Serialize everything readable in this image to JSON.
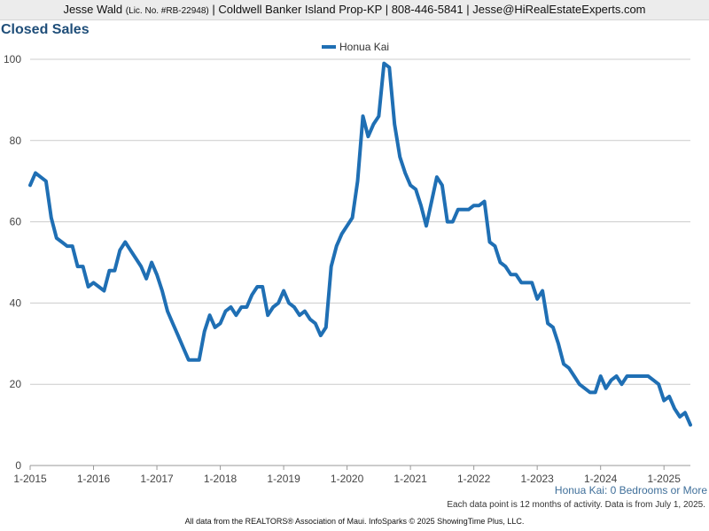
{
  "header": {
    "agent_name": "Jesse Wald",
    "license": "(Lic. No. #RB-22948)",
    "details": "| Coldwell Banker Island Prop-KP | 808-446-5841 | Jesse@HiRealEstateExperts.com"
  },
  "subtitle": "Honua Kai: 0 Bedrooms or More",
  "notes": {
    "data_note": "Each data point is 12 months of activity. Data is from July 1, 2025.",
    "footer": "All data from the REALTORS® Association of Maui. InfoSparks © 2025 ShowingTime Plus, LLC."
  },
  "colors": {
    "series": "#1f6fb4",
    "title": "#1f4e79",
    "grid": "#cccccc"
  },
  "chart_data": {
    "type": "line",
    "title": "Closed Sales",
    "xlabel": "",
    "ylabel": "",
    "ylim": [
      0,
      100
    ],
    "yticks": [
      0,
      20,
      40,
      60,
      80,
      100
    ],
    "xlim": [
      "2015-01",
      "2025-06"
    ],
    "xticks": [
      "1-2015",
      "1-2016",
      "1-2017",
      "1-2018",
      "1-2019",
      "1-2020",
      "1-2021",
      "1-2022",
      "1-2023",
      "1-2024",
      "1-2025"
    ],
    "legend": "top-center",
    "grid": true,
    "series": [
      {
        "name": "Honua Kai",
        "x": [
          "2015-01",
          "2015-02",
          "2015-03",
          "2015-04",
          "2015-05",
          "2015-06",
          "2015-07",
          "2015-08",
          "2015-09",
          "2015-10",
          "2015-11",
          "2015-12",
          "2016-01",
          "2016-02",
          "2016-03",
          "2016-04",
          "2016-05",
          "2016-06",
          "2016-07",
          "2016-08",
          "2016-09",
          "2016-10",
          "2016-11",
          "2016-12",
          "2017-01",
          "2017-02",
          "2017-03",
          "2017-04",
          "2017-05",
          "2017-06",
          "2017-07",
          "2017-08",
          "2017-09",
          "2017-10",
          "2017-11",
          "2017-12",
          "2018-01",
          "2018-02",
          "2018-03",
          "2018-04",
          "2018-05",
          "2018-06",
          "2018-07",
          "2018-08",
          "2018-09",
          "2018-10",
          "2018-11",
          "2018-12",
          "2019-01",
          "2019-02",
          "2019-03",
          "2019-04",
          "2019-05",
          "2019-06",
          "2019-07",
          "2019-08",
          "2019-09",
          "2019-10",
          "2019-11",
          "2019-12",
          "2020-01",
          "2020-02",
          "2020-03",
          "2020-04",
          "2020-05",
          "2020-06",
          "2020-07",
          "2020-08",
          "2020-09",
          "2020-10",
          "2020-11",
          "2020-12",
          "2021-01",
          "2021-02",
          "2021-03",
          "2021-04",
          "2021-05",
          "2021-06",
          "2021-07",
          "2021-08",
          "2021-09",
          "2021-10",
          "2021-11",
          "2021-12",
          "2022-01",
          "2022-02",
          "2022-03",
          "2022-04",
          "2022-05",
          "2022-06",
          "2022-07",
          "2022-08",
          "2022-09",
          "2022-10",
          "2022-11",
          "2022-12",
          "2023-01",
          "2023-02",
          "2023-03",
          "2023-04",
          "2023-05",
          "2023-06",
          "2023-07",
          "2023-08",
          "2023-09",
          "2023-10",
          "2023-11",
          "2023-12",
          "2024-01",
          "2024-02",
          "2024-03",
          "2024-04",
          "2024-05",
          "2024-06",
          "2024-07",
          "2024-08",
          "2024-09",
          "2024-10",
          "2024-11",
          "2024-12",
          "2025-01",
          "2025-02",
          "2025-03",
          "2025-04",
          "2025-05",
          "2025-06"
        ],
        "values": [
          69,
          72,
          71,
          70,
          61,
          56,
          55,
          54,
          54,
          49,
          49,
          44,
          45,
          44,
          43,
          48,
          48,
          53,
          55,
          53,
          51,
          49,
          46,
          50,
          47,
          43,
          38,
          35,
          32,
          29,
          26,
          26,
          26,
          33,
          37,
          34,
          35,
          38,
          39,
          37,
          39,
          39,
          42,
          44,
          44,
          37,
          39,
          40,
          43,
          40,
          39,
          37,
          38,
          36,
          35,
          32,
          34,
          49,
          54,
          57,
          59,
          61,
          70,
          86,
          81,
          84,
          86,
          99,
          98,
          84,
          76,
          72,
          69,
          68,
          64,
          59,
          65,
          71,
          69,
          60,
          60,
          63,
          63,
          63,
          64,
          64,
          65,
          55,
          54,
          50,
          49,
          47,
          47,
          45,
          45,
          45,
          41,
          43,
          35,
          34,
          30,
          25,
          24,
          22,
          20,
          19,
          18,
          18,
          22,
          19,
          21,
          22,
          20,
          22,
          22,
          22,
          22,
          22,
          21,
          20,
          16,
          17,
          14,
          12,
          13,
          10
        ]
      }
    ]
  }
}
